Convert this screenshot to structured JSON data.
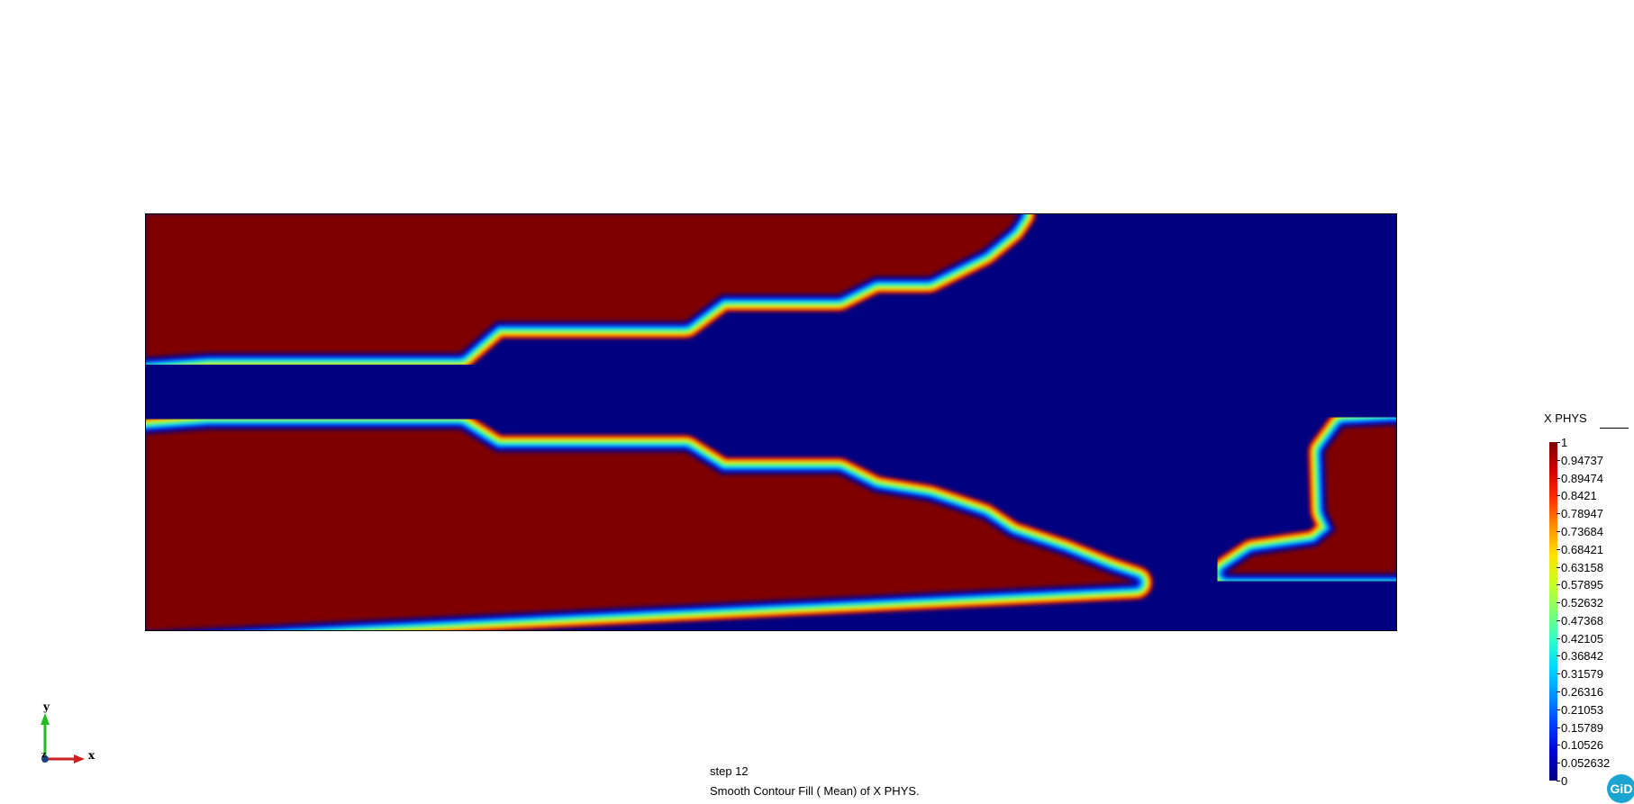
{
  "result": {
    "name": "X PHYS",
    "step_label": "step 12",
    "description": "Smooth Contour Fill ( Mean) of X PHYS."
  },
  "legend": {
    "title": "X PHYS",
    "ticks": [
      "1",
      "0.94737",
      "0.89474",
      "0.8421",
      "0.78947",
      "0.73684",
      "0.68421",
      "0.63158",
      "0.57895",
      "0.52632",
      "0.47368",
      "0.42105",
      "0.36842",
      "0.31579",
      "0.26316",
      "0.21053",
      "0.15789",
      "0.10526",
      "0.052632",
      "0"
    ],
    "colors": [
      "#000080",
      "#0000d0",
      "#0040ff",
      "#0090ff",
      "#00d8ff",
      "#30ffc8",
      "#80ff70",
      "#c8ff20",
      "#ffe000",
      "#ff9000",
      "#ff3000",
      "#d00000",
      "#800000"
    ]
  },
  "axes": {
    "x_label": "x",
    "y_label": "y",
    "z_label": "z"
  },
  "logo": {
    "text": "GiD"
  },
  "field": {
    "solid_color": "#800000",
    "void_color": "#000080",
    "upper_boundary": [
      [
        0,
        160
      ],
      [
        70,
        155
      ],
      [
        350,
        155
      ],
      [
        390,
        120
      ],
      [
        600,
        120
      ],
      [
        640,
        90
      ],
      [
        770,
        90
      ],
      [
        810,
        70
      ],
      [
        870,
        70
      ],
      [
        930,
        40
      ],
      [
        960,
        15
      ],
      [
        970,
        0
      ]
    ],
    "lower_boundary": [
      [
        0,
        245
      ],
      [
        70,
        240
      ],
      [
        350,
        240
      ],
      [
        390,
        265
      ],
      [
        600,
        265
      ],
      [
        640,
        290
      ],
      [
        770,
        290
      ],
      [
        810,
        310
      ],
      [
        870,
        320
      ],
      [
        930,
        340
      ],
      [
        960,
        360
      ],
      [
        1020,
        380
      ],
      [
        1070,
        400
      ],
      [
        1100,
        410
      ]
    ],
    "right_pocket": [
      [
        1390,
        235
      ],
      [
        1330,
        238
      ],
      [
        1310,
        265
      ],
      [
        1312,
        330
      ],
      [
        1322,
        352
      ],
      [
        1300,
        370
      ],
      [
        1230,
        380
      ],
      [
        1200,
        400
      ],
      [
        1390,
        400
      ]
    ]
  }
}
